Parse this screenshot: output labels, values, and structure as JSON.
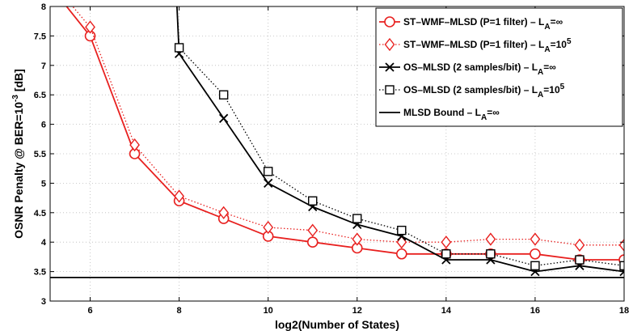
{
  "chart_data": {
    "type": "line",
    "xlabel": "log2(Number of States)",
    "ylabel_parts": [
      "OSNR Penalty @ BER=10",
      "-3",
      " [dB]"
    ],
    "xlim": [
      5.1,
      18
    ],
    "ylim": [
      3,
      8
    ],
    "xticks": [
      6,
      8,
      10,
      12,
      14,
      16,
      18
    ],
    "yticks": [
      3,
      3.5,
      4,
      4.5,
      5,
      5.5,
      6,
      6.5,
      7,
      7.5,
      8
    ],
    "legend_position": "top-right",
    "series": [
      {
        "name": "ST–WMF–MLSD (P=1 filter) – L",
        "name_sub": "A",
        "name_suffix": "=∞",
        "color": "#e8201f",
        "line": "solid",
        "marker": "circle",
        "x": [
          5.1,
          6,
          7,
          8,
          9,
          10,
          11,
          12,
          13,
          14,
          15,
          16,
          17,
          18
        ],
        "y": [
          8.35,
          7.5,
          5.5,
          4.7,
          4.4,
          4.1,
          4.0,
          3.9,
          3.8,
          3.8,
          3.8,
          3.8,
          3.7,
          3.7
        ]
      },
      {
        "name": "ST–WMF–MLSD (P=1 filter) – L",
        "name_sub": "A",
        "name_suffix": "=10",
        "name_sup": "5",
        "color": "#e8201f",
        "line": "dotted",
        "marker": "diamond",
        "x": [
          5.1,
          6,
          7,
          8,
          9,
          10,
          11,
          12,
          13,
          14,
          15,
          16,
          17,
          18
        ],
        "y": [
          8.45,
          7.65,
          5.65,
          4.78,
          4.5,
          4.25,
          4.2,
          4.05,
          4.0,
          4.0,
          4.05,
          4.05,
          3.95,
          3.95
        ]
      },
      {
        "name": "OS–MLSD (2 samples/bit) – L",
        "name_sub": "A",
        "name_suffix": "=∞",
        "color": "#000000",
        "line": "solid",
        "marker": "x",
        "x": [
          7.95,
          8,
          9,
          10,
          11,
          12,
          13,
          14,
          15,
          16,
          17,
          18
        ],
        "y": [
          8.0,
          7.2,
          6.1,
          5.0,
          4.6,
          4.3,
          4.1,
          3.7,
          3.7,
          3.5,
          3.6,
          3.5
        ]
      },
      {
        "name": "OS–MLSD (2 samples/bit) – L",
        "name_sub": "A",
        "name_suffix": "=10",
        "name_sup": "5",
        "color": "#000000",
        "line": "dotted",
        "marker": "square",
        "x": [
          7.95,
          8,
          9,
          10,
          11,
          12,
          13,
          14,
          15,
          16,
          17,
          18
        ],
        "y": [
          8.0,
          7.3,
          6.5,
          5.2,
          4.7,
          4.4,
          4.2,
          3.8,
          3.8,
          3.6,
          3.7,
          3.6
        ]
      },
      {
        "name": "MLSD Bound – L",
        "name_sub": "A",
        "name_suffix": "=∞",
        "color": "#000000",
        "line": "solid",
        "marker": "none",
        "x": [
          5.1,
          18
        ],
        "y": [
          3.4,
          3.4
        ]
      }
    ]
  }
}
